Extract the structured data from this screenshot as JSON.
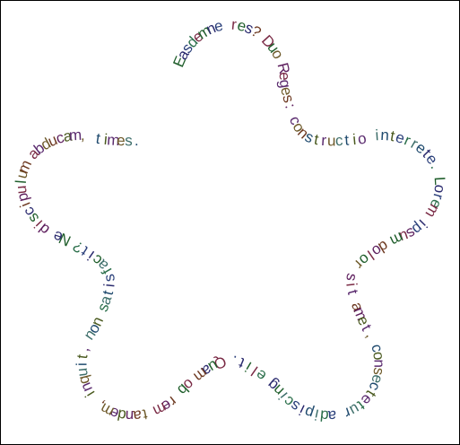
{
  "text_on_path": "Easdemne res? Duo Reges: constructio interrete. Lorem ipsum dolor sit amet, consectetur adipiscing elit. Quam ob rem tandem, inquit, non satisfacit? Ne discipulum abducam, times.",
  "shape": "five-pointed rounded star",
  "glyph_colors": [
    "#1f5e2b",
    "#5a2a6e",
    "#2a3f7a",
    "#6e3a22",
    "#3d6e6a",
    "#7a2a45",
    "#4a5a1f",
    "#2a2a6e",
    "#6e5a2a",
    "#2a6e4a",
    "#5e1f5e",
    "#1f4a6e"
  ]
}
